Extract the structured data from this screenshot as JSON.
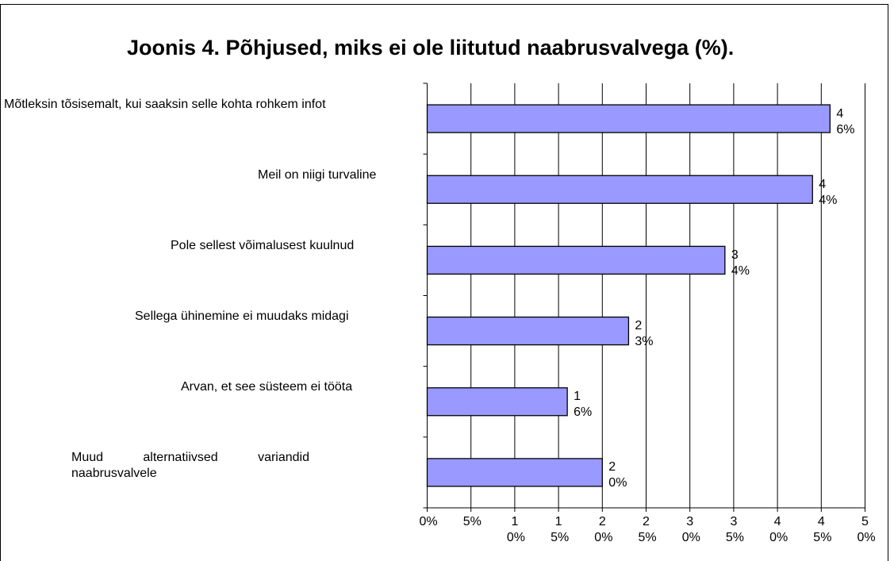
{
  "chart_data": {
    "type": "barh",
    "title": "Joonis 4. Põhjused, miks ei ole liitutud naabrusvalvega (%).",
    "categories": [
      "Mõtleksin tõsisemalt, kui saaksin selle kohta rohkem infot",
      "Meil on niigi turvaline",
      "Pole sellest võimalusest kuulnud",
      "Sellega ühinemine ei muudaks midagi",
      "Arvan, et see süsteem ei tööta",
      "Muud alternatiivsed variandid naabrusvalvele"
    ],
    "values": [
      46,
      44,
      34,
      23,
      16,
      20
    ],
    "value_labels": [
      "46%",
      "44%",
      "34%",
      "23%",
      "16%",
      "20%"
    ],
    "color": "#9999ff",
    "xlim": [
      0,
      50
    ],
    "xticks": [
      {
        "value": 0,
        "label": "0%"
      },
      {
        "value": 5,
        "label": "5%"
      },
      {
        "value": 10,
        "label": "10%"
      },
      {
        "value": 15,
        "label": "15%"
      },
      {
        "value": 20,
        "label": "20%"
      },
      {
        "value": 25,
        "label": "25%"
      },
      {
        "value": 30,
        "label": "30%"
      },
      {
        "value": 35,
        "label": "35%"
      },
      {
        "value": 40,
        "label": "40%"
      },
      {
        "value": 45,
        "label": "45%"
      },
      {
        "value": 50,
        "label": "50%"
      }
    ],
    "grid": true
  }
}
